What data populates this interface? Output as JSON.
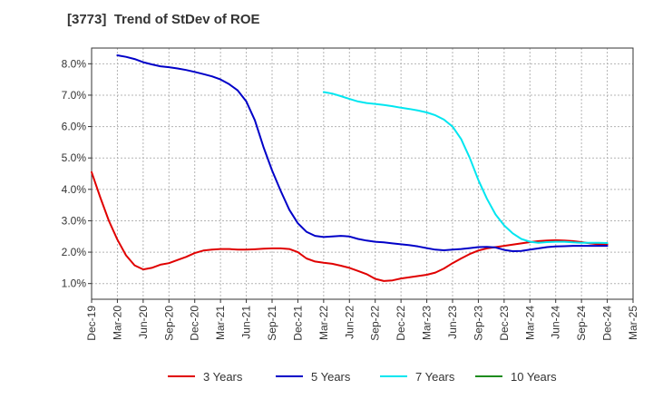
{
  "chart_data": {
    "type": "line",
    "title": "[3773]  Trend of StDev of ROE",
    "xlabel": "",
    "ylabel": "",
    "x_tick_labels": [
      "Dec-19",
      "Mar-20",
      "Jun-20",
      "Sep-20",
      "Dec-20",
      "Mar-21",
      "Jun-21",
      "Sep-21",
      "Dec-21",
      "Mar-22",
      "Jun-22",
      "Sep-22",
      "Dec-22",
      "Mar-23",
      "Jun-23",
      "Sep-23",
      "Dec-23",
      "Mar-24",
      "Jun-24",
      "Sep-24",
      "Dec-24",
      "Mar-25"
    ],
    "y_tick_labels": [
      "1.0%",
      "2.0%",
      "3.0%",
      "4.0%",
      "5.0%",
      "6.0%",
      "7.0%",
      "8.0%"
    ],
    "y_ticks": [
      1,
      2,
      3,
      4,
      5,
      6,
      7,
      8
    ],
    "xlim": [
      0,
      63
    ],
    "ylim": [
      0.5,
      8.5
    ],
    "grid": true,
    "legend_position": "bottom",
    "series": [
      {
        "name": "3 Years",
        "color": "#e00000",
        "x": [
          0,
          1,
          2,
          3,
          4,
          5,
          6,
          7,
          8,
          9,
          10,
          11,
          12,
          13,
          14,
          15,
          16,
          17,
          18,
          19,
          20,
          21,
          22,
          23,
          24,
          25,
          26,
          27,
          28,
          29,
          30,
          31,
          32,
          33,
          34,
          35,
          36,
          37,
          38,
          39,
          40,
          41,
          42,
          43,
          44,
          45,
          46,
          47,
          48,
          49,
          50,
          51,
          52,
          53,
          54,
          55,
          56,
          57,
          58,
          59,
          60
        ],
        "values": [
          4.55,
          3.75,
          3.0,
          2.4,
          1.9,
          1.58,
          1.45,
          1.5,
          1.6,
          1.65,
          1.75,
          1.85,
          1.97,
          2.05,
          2.08,
          2.1,
          2.1,
          2.08,
          2.08,
          2.09,
          2.11,
          2.12,
          2.12,
          2.1,
          2.0,
          1.8,
          1.7,
          1.66,
          1.63,
          1.57,
          1.5,
          1.4,
          1.3,
          1.15,
          1.08,
          1.1,
          1.16,
          1.2,
          1.24,
          1.28,
          1.35,
          1.48,
          1.65,
          1.8,
          1.94,
          2.05,
          2.12,
          2.16,
          2.2,
          2.24,
          2.28,
          2.32,
          2.35,
          2.37,
          2.38,
          2.37,
          2.35,
          2.32,
          2.28,
          2.25,
          2.25
        ]
      },
      {
        "name": "5 Years",
        "color": "#0000c8",
        "x": [
          3,
          4,
          5,
          6,
          7,
          8,
          9,
          10,
          11,
          12,
          13,
          14,
          15,
          16,
          17,
          18,
          19,
          20,
          21,
          22,
          23,
          24,
          25,
          26,
          27,
          28,
          29,
          30,
          31,
          32,
          33,
          34,
          35,
          36,
          37,
          38,
          39,
          40,
          41,
          42,
          43,
          44,
          45,
          46,
          47,
          48,
          49,
          50,
          51,
          52,
          53,
          54,
          55,
          56,
          57,
          58,
          59,
          60
        ],
        "values": [
          8.27,
          8.22,
          8.15,
          8.05,
          7.98,
          7.92,
          7.89,
          7.85,
          7.8,
          7.74,
          7.67,
          7.6,
          7.5,
          7.35,
          7.15,
          6.8,
          6.2,
          5.35,
          4.6,
          3.95,
          3.35,
          2.92,
          2.65,
          2.52,
          2.48,
          2.5,
          2.52,
          2.5,
          2.42,
          2.37,
          2.33,
          2.31,
          2.28,
          2.25,
          2.22,
          2.18,
          2.13,
          2.08,
          2.06,
          2.08,
          2.1,
          2.13,
          2.16,
          2.17,
          2.15,
          2.07,
          2.03,
          2.04,
          2.08,
          2.12,
          2.16,
          2.18,
          2.19,
          2.2,
          2.2,
          2.2,
          2.2,
          2.2
        ]
      },
      {
        "name": "7 Years",
        "color": "#00e6f0",
        "x": [
          27,
          28,
          29,
          30,
          31,
          32,
          33,
          34,
          35,
          36,
          37,
          38,
          39,
          40,
          41,
          42,
          43,
          44,
          45,
          46,
          47,
          48,
          49,
          50,
          51,
          52,
          53,
          54,
          55,
          56,
          57,
          58,
          59,
          60
        ],
        "values": [
          7.1,
          7.05,
          6.97,
          6.88,
          6.8,
          6.75,
          6.72,
          6.69,
          6.65,
          6.6,
          6.56,
          6.51,
          6.45,
          6.36,
          6.22,
          6.0,
          5.6,
          5.0,
          4.3,
          3.7,
          3.2,
          2.85,
          2.6,
          2.42,
          2.33,
          2.3,
          2.32,
          2.33,
          2.33,
          2.31,
          2.3,
          2.3,
          2.3,
          2.29
        ]
      },
      {
        "name": "10 Years",
        "color": "#1e8c1e",
        "x": [],
        "values": []
      }
    ]
  }
}
